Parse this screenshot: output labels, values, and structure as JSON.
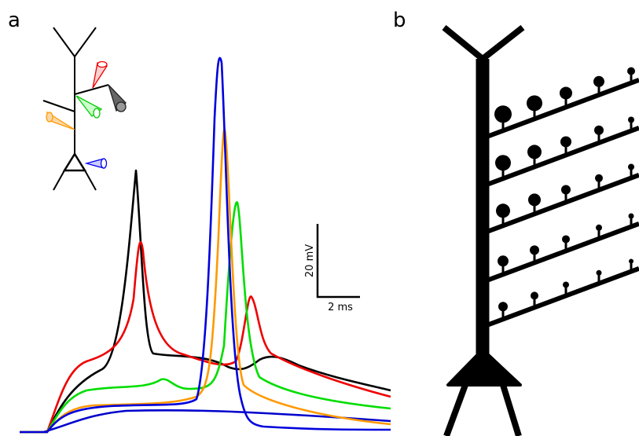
{
  "panel_a": {
    "label": "a",
    "scale_bar": {
      "voltage": "20 mV",
      "time": "2 ms"
    }
  },
  "panel_b": {
    "label": "b"
  }
}
